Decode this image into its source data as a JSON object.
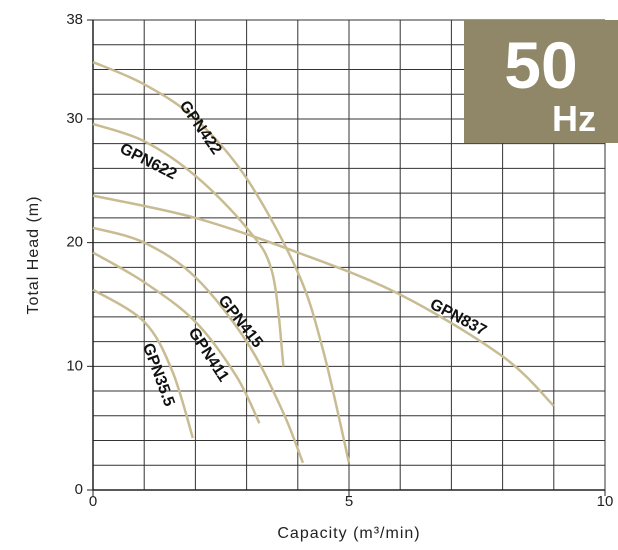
{
  "chart_data": {
    "type": "line",
    "badge": {
      "number": "50",
      "unit": "Hz",
      "color": "#8f8767"
    },
    "x_label": "Capacity (m³/min)",
    "y_label": "Total Head (m)",
    "xlim": [
      0,
      10
    ],
    "ylim": [
      0,
      38
    ],
    "xticks": [
      0,
      5,
      10
    ],
    "yticks": [
      0,
      10,
      20,
      30,
      38
    ],
    "minor_grid": {
      "x": 1,
      "y": 2
    },
    "series": [
      {
        "name": "GPN422",
        "color": "#c9bc92",
        "x": [
          0,
          1,
          2,
          3,
          4,
          4.5,
          5
        ],
        "values": [
          34.6,
          32.8,
          30,
          25.2,
          17.6,
          11.2,
          2.2
        ]
      },
      {
        "name": "GPN622",
        "color": "#c9bc92",
        "x": [
          0,
          1,
          2,
          3,
          3.5,
          3.72
        ],
        "values": [
          29.6,
          28.2,
          25.4,
          21.2,
          17.6,
          10
        ]
      },
      {
        "name": "GPN837",
        "color": "#c9bc92",
        "x": [
          0,
          2,
          4,
          6,
          8,
          9
        ],
        "values": [
          23.8,
          22,
          19.2,
          15.8,
          10.8,
          6.8
        ]
      },
      {
        "name": "GPN415",
        "color": "#c9bc92",
        "x": [
          0,
          1,
          2,
          3,
          3.7,
          4.1
        ],
        "values": [
          21.2,
          20,
          17.2,
          12,
          6.4,
          2.2
        ]
      },
      {
        "name": "GPN411",
        "color": "#c9bc92",
        "x": [
          0,
          1,
          2,
          2.8,
          3.25
        ],
        "values": [
          19.2,
          16.8,
          13.6,
          9.2,
          5.4
        ]
      },
      {
        "name": "GPN35.5",
        "color": "#c9bc92",
        "x": [
          0,
          1,
          1.55,
          1.95
        ],
        "values": [
          16.2,
          13.6,
          9.6,
          4.2
        ]
      }
    ]
  }
}
